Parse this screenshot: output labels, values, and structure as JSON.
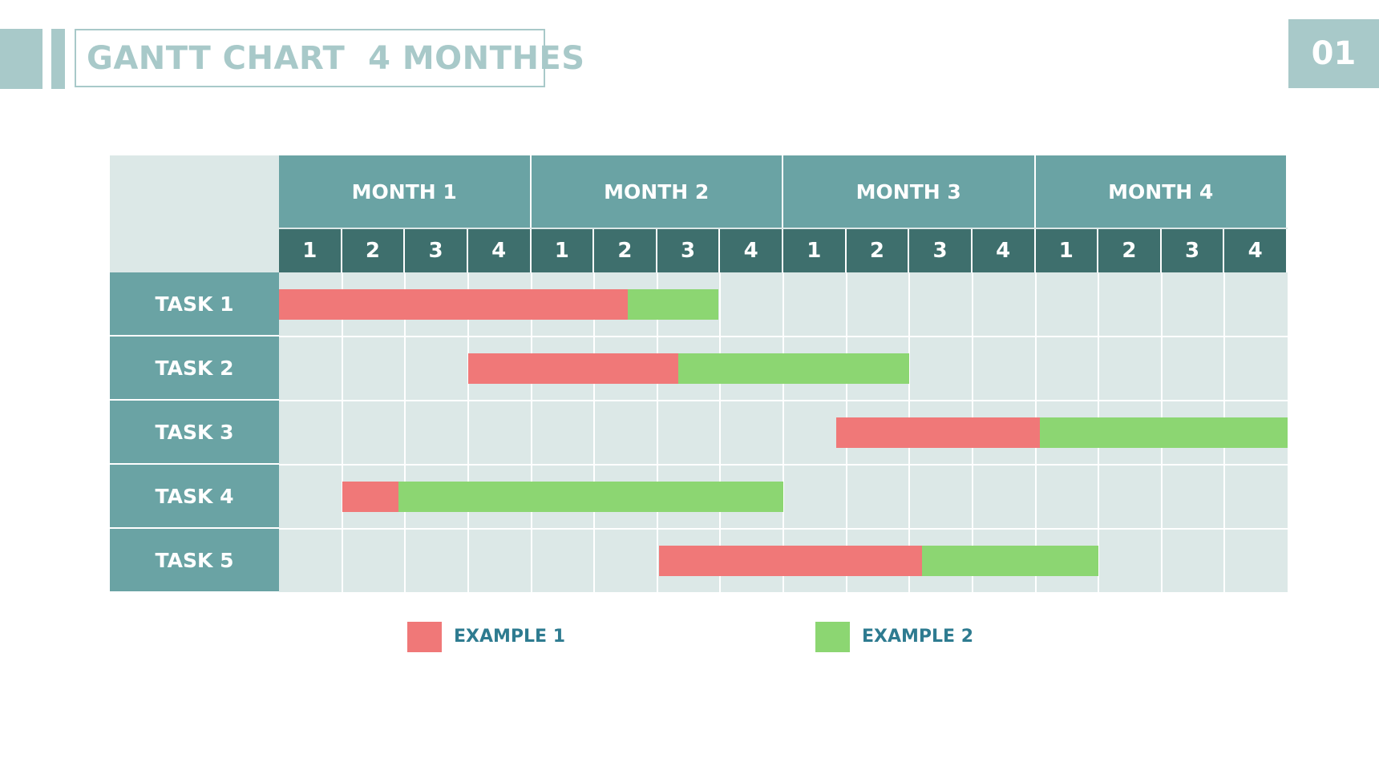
{
  "header": {
    "title": "GANTT CHART  4 MONTHES",
    "page_number": "01"
  },
  "colors": {
    "example_1": "#f07878",
    "example_2": "#8cd672"
  },
  "chart_data": {
    "type": "gantt",
    "title": "GANTT CHART  4 MONTHES",
    "months": [
      "MONTH 1",
      "MONTH 2",
      "MONTH 3",
      "MONTH 4"
    ],
    "weeks": [
      "1",
      "2",
      "3",
      "4"
    ],
    "tasks": [
      {
        "name": "TASK 1",
        "segments": [
          {
            "series": "EXAMPLE 1",
            "start": 0,
            "end": 5.53
          },
          {
            "series": "EXAMPLE 2",
            "start": 5.53,
            "end": 6.97
          }
        ]
      },
      {
        "name": "TASK 2",
        "segments": [
          {
            "series": "EXAMPLE 1",
            "start": 3.0,
            "end": 6.33
          },
          {
            "series": "EXAMPLE 2",
            "start": 6.33,
            "end": 10.0
          }
        ]
      },
      {
        "name": "TASK 3",
        "segments": [
          {
            "series": "EXAMPLE 1",
            "start": 8.84,
            "end": 12.07
          },
          {
            "series": "EXAMPLE 2",
            "start": 12.07,
            "end": 16.0
          }
        ]
      },
      {
        "name": "TASK 4",
        "segments": [
          {
            "series": "EXAMPLE 1",
            "start": 1.0,
            "end": 1.9
          },
          {
            "series": "EXAMPLE 2",
            "start": 1.9,
            "end": 8.0
          }
        ]
      },
      {
        "name": "TASK 5",
        "segments": [
          {
            "series": "EXAMPLE 1",
            "start": 6.03,
            "end": 10.2
          },
          {
            "series": "EXAMPLE 2",
            "start": 10.2,
            "end": 13.0
          }
        ]
      }
    ],
    "legend": [
      {
        "label": "EXAMPLE 1",
        "color": "#f07878"
      },
      {
        "label": "EXAMPLE 2",
        "color": "#8cd672"
      }
    ],
    "xlim": [
      0,
      16
    ],
    "x_unit": "weeks"
  }
}
